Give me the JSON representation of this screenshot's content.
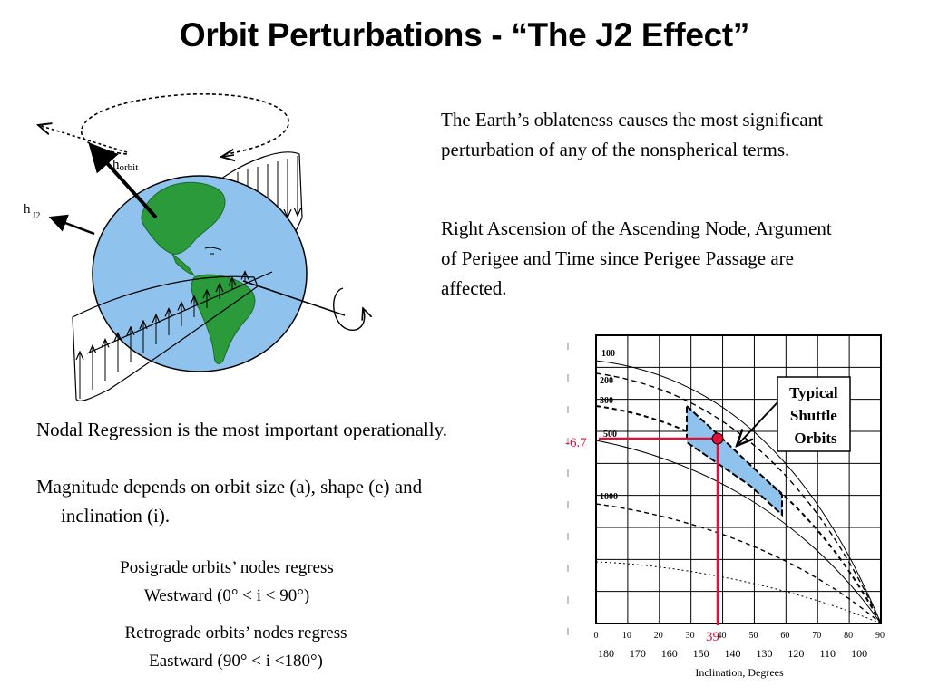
{
  "title": "Orbit Perturbations - “The J2 Effect”",
  "paragraphs": [
    "The Earth’s oblateness causes the most significant perturbation of any of the nonspherical terms.",
    "Right Ascension of the Ascending Node, Argument of Perigee and Time since Perigee Passage are affected."
  ],
  "bullets": [
    "Nodal Regression is the most important operationally.",
    "Magnitude depends on orbit size (a), shape (e) and inclination (i)."
  ],
  "notes": [
    {
      "line1": "Posigrade orbits’ nodes regress",
      "line2": "Westward (0° < i < 90°)"
    },
    {
      "line1": "Retrograde orbits’ nodes regress",
      "line2": "Eastward (90° < i <180°)"
    }
  ],
  "diagram": {
    "h_orbit_base": "h",
    "h_orbit_sub": "orbit",
    "h_j2_base": "h",
    "h_j2_sub": "J2",
    "colors": {
      "ocean": "#8fc3ee",
      "land": "#2a9a3a",
      "land_dark": "#1c6b27"
    }
  },
  "chart_data": {
    "type": "line",
    "xlabel": "Inclination, Degrees",
    "x_ticks": [
      "0",
      "10",
      "20",
      "30",
      "40",
      "50",
      "60",
      "70",
      "80",
      "90"
    ],
    "x_ticks_retro": [
      "180",
      "170",
      "160",
      "150",
      "140",
      "130",
      "120",
      "110",
      "100"
    ],
    "xlim": [
      0,
      90
    ],
    "series_labels": [
      "100",
      "200",
      "300",
      "500",
      "1000"
    ],
    "callout": "Typical Shuttle Orbits",
    "marker_y_label": "-6.7",
    "marker_x_label": "39",
    "marker_point": {
      "x": 39,
      "y": -6.7
    },
    "colors": {
      "marker": "#e0103a",
      "shuttle_fill": "#8fc3ee"
    }
  }
}
